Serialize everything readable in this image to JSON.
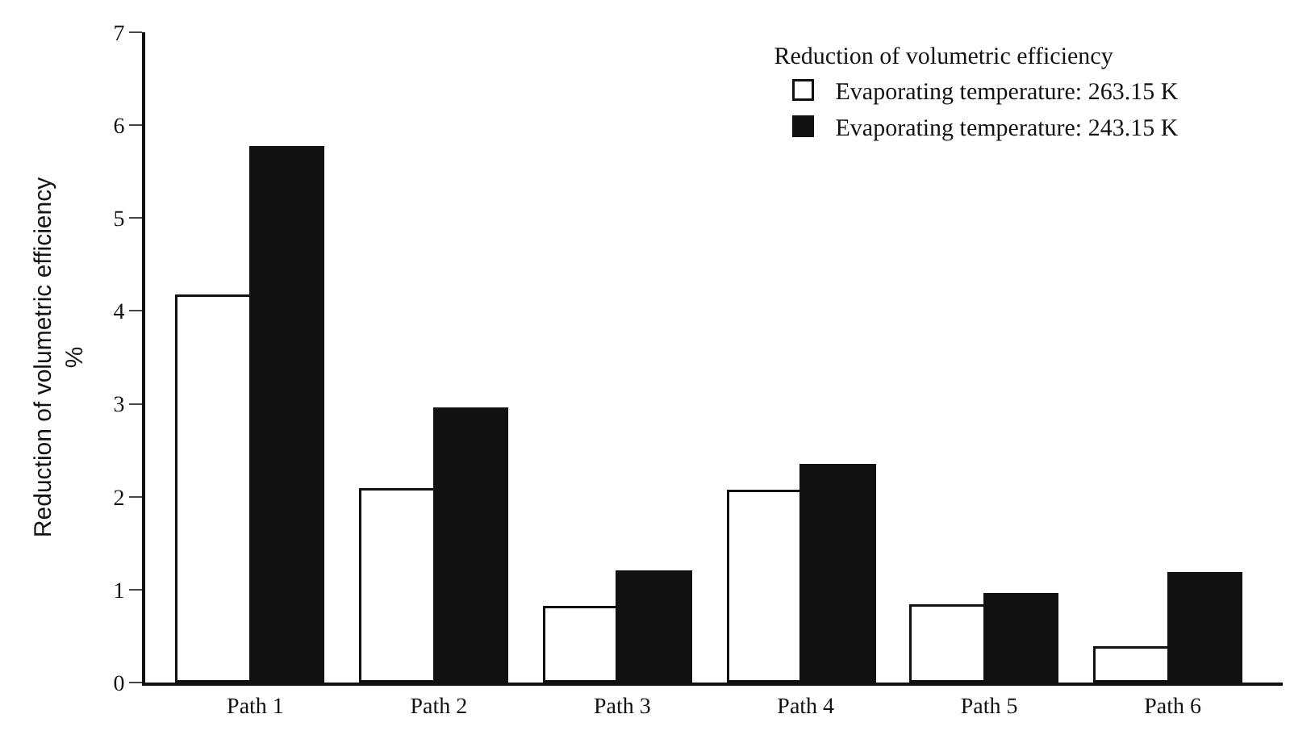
{
  "chart_data": {
    "type": "bar",
    "ylabel": "Reduction of volumetric efficiency\n%",
    "legend_title": "Reduction of volumetric efficiency",
    "categories": [
      "Path 1",
      "Path 2",
      "Path 3",
      "Path 4",
      "Path 5",
      "Path 6"
    ],
    "series": [
      {
        "name": "Evaporating temperature: 263.15 K",
        "color": "#ffffff",
        "values": [
          4.16,
          2.06,
          0.8,
          2.05,
          0.82,
          0.37
        ]
      },
      {
        "name": "Evaporating temperature: 243.15 K",
        "color": "#111111",
        "values": [
          5.75,
          2.93,
          1.18,
          2.32,
          0.93,
          1.16
        ]
      }
    ],
    "ylim": [
      0,
      7
    ],
    "yticks": [
      0,
      1,
      2,
      3,
      4,
      5,
      6,
      7
    ],
    "legend": "top right"
  }
}
